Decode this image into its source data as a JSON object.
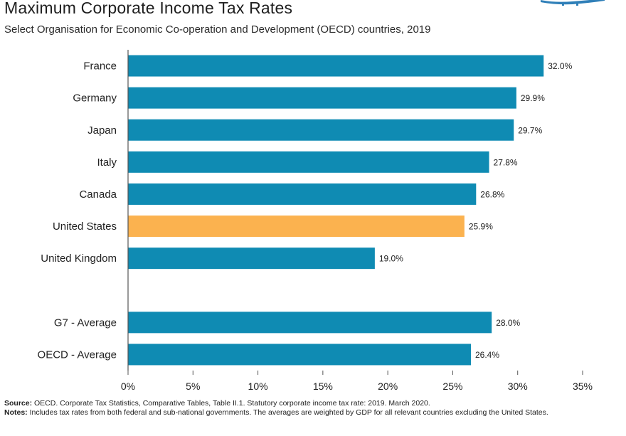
{
  "title": "Maximum Corporate Income Tax Rates",
  "subtitle": "Select Organisation for Economic Co-operation and Development (OECD) countries, 2019",
  "source_label": "Source:",
  "source_text": "OECD. Corporate Tax Statistics, Comparative Tables, Table II.1. Statutory corporate income tax rate: 2019. March 2020.",
  "notes_label": "Notes:",
  "notes_text": "Includes tax rates from both federal and sub-national governments. The averages are weighted by GDP for all relevant countries excluding the United States.",
  "colors": {
    "bar": "#0f8bb3",
    "highlight": "#fbb24f",
    "axis": "#555555",
    "logo": "#2f7fb8"
  },
  "chart_data": {
    "type": "bar",
    "orientation": "horizontal",
    "categories": [
      "France",
      "Germany",
      "Japan",
      "Italy",
      "Canada",
      "United States",
      "United Kingdom",
      "",
      "G7 - Average",
      "OECD - Average"
    ],
    "values": [
      32.0,
      29.9,
      29.7,
      27.8,
      26.8,
      25.9,
      19.0,
      null,
      28.0,
      26.4
    ],
    "value_labels": [
      "32.0%",
      "29.9%",
      "29.7%",
      "27.8%",
      "26.8%",
      "25.9%",
      "19.0%",
      "",
      "28.0%",
      "26.4%"
    ],
    "highlight_category": "United States",
    "xlim": [
      0,
      35
    ],
    "xticks": [
      0,
      5,
      10,
      15,
      20,
      25,
      30,
      35
    ],
    "xtick_labels": [
      "0%",
      "5%",
      "10%",
      "15%",
      "20%",
      "25%",
      "30%",
      "35%"
    ],
    "grid": false,
    "xlabel": "",
    "ylabel": ""
  }
}
